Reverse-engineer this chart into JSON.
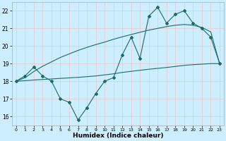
{
  "bg_color": "#cceeff",
  "grid_color": "#e8c8c8",
  "line_color": "#1a6b6b",
  "xlabel": "Humidex (Indice chaleur)",
  "xlim": [
    -0.5,
    23.5
  ],
  "ylim": [
    15.5,
    22.5
  ],
  "yticks": [
    16,
    17,
    18,
    19,
    20,
    21,
    22
  ],
  "xticks": [
    0,
    1,
    2,
    3,
    4,
    5,
    6,
    7,
    8,
    9,
    10,
    11,
    12,
    13,
    14,
    15,
    16,
    17,
    18,
    19,
    20,
    21,
    22,
    23
  ],
  "line_marked": [
    18.0,
    18.3,
    18.8,
    18.3,
    18.0,
    17.0,
    16.8,
    15.8,
    16.5,
    17.3,
    18.0,
    18.2,
    19.5,
    20.5,
    19.3,
    21.7,
    22.2,
    21.3,
    21.8,
    22.0,
    21.3,
    21.0,
    20.5,
    19.0
  ],
  "line_upper": [
    18.0,
    18.2,
    18.55,
    18.85,
    19.1,
    19.35,
    19.55,
    19.75,
    19.92,
    20.08,
    20.22,
    20.38,
    20.52,
    20.65,
    20.78,
    20.9,
    21.0,
    21.1,
    21.18,
    21.22,
    21.18,
    21.05,
    20.8,
    19.0
  ],
  "line_lower": [
    18.0,
    18.03,
    18.07,
    18.1,
    18.13,
    18.16,
    18.19,
    18.22,
    18.26,
    18.3,
    18.36,
    18.42,
    18.5,
    18.56,
    18.62,
    18.68,
    18.73,
    18.78,
    18.84,
    18.9,
    18.94,
    18.97,
    19.0,
    19.0
  ]
}
